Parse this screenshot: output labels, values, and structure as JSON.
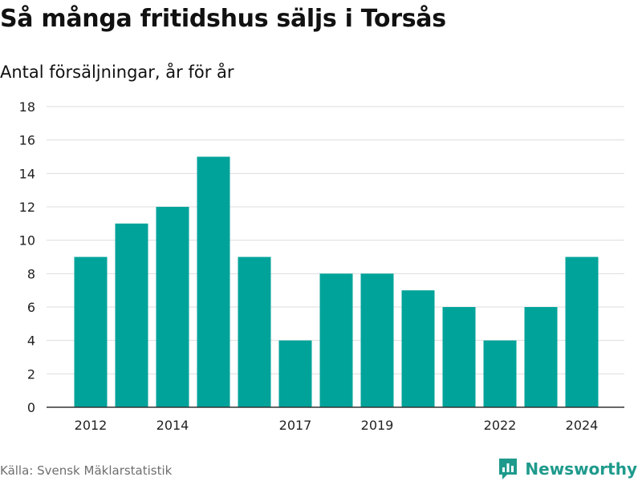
{
  "header": {
    "title": "Så många fritidshus säljs i Torsås",
    "subtitle": "Antal försäljningar, år för år"
  },
  "footer": {
    "source": "Källa: Svensk Mäklarstatistik",
    "brand": "Newsworthy"
  },
  "colors": {
    "bar": "#00a39a",
    "grid": "#dddddd",
    "axis": "#333333",
    "brand": "#1e9a8c"
  },
  "chart_data": {
    "type": "bar",
    "categories": [
      "2012",
      "2013",
      "2014",
      "2015",
      "2016",
      "2017",
      "2018",
      "2019",
      "2020",
      "2021",
      "2022",
      "2023",
      "2024"
    ],
    "values": [
      9,
      11,
      12,
      15,
      9,
      4,
      8,
      8,
      7,
      6,
      4,
      6,
      9
    ],
    "x_tick_labels": [
      "2012",
      "2014",
      "2017",
      "2019",
      "2022",
      "2024"
    ],
    "y_ticks": [
      0,
      2,
      4,
      6,
      8,
      10,
      12,
      14,
      16,
      18
    ],
    "ylim": [
      0,
      18
    ],
    "title": "Så många fritidshus säljs i Torsås",
    "subtitle": "Antal försäljningar, år för år",
    "xlabel": "",
    "ylabel": "",
    "grid": true,
    "legend": "none"
  }
}
